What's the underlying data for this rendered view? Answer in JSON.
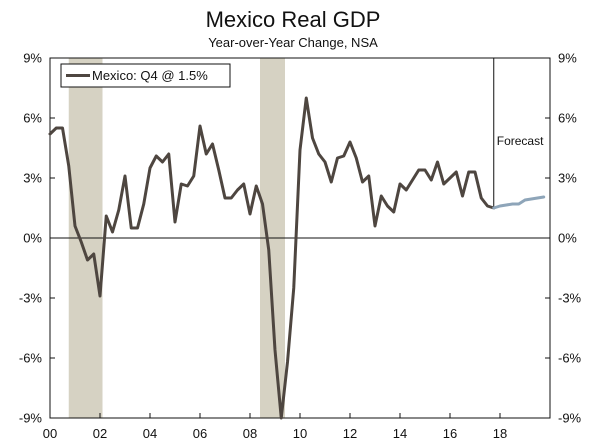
{
  "chart_data": {
    "type": "line",
    "title": "Mexico Real GDP",
    "subtitle": "Year-over-Year Change, NSA",
    "xlabel": "",
    "ylabel": "",
    "xlim": [
      2000,
      2020
    ],
    "ylim": [
      -9,
      9
    ],
    "y_ticks": [
      9,
      6,
      3,
      0,
      -3,
      -6,
      -9
    ],
    "y_tick_labels": [
      "9%",
      "6%",
      "3%",
      "0%",
      "-3%",
      "-6%",
      "-9%"
    ],
    "x_ticks": [
      2000,
      2002,
      2004,
      2006,
      2008,
      2010,
      2012,
      2014,
      2016,
      2018
    ],
    "x_tick_labels": [
      "00",
      "02",
      "04",
      "06",
      "08",
      "10",
      "12",
      "14",
      "16",
      "18"
    ],
    "legend": {
      "label": "Mexico: Q4 @ 1.5%",
      "position": "top-left"
    },
    "annotations": [
      {
        "text": "Forecast",
        "x": 2017.75
      }
    ],
    "recessions": [
      [
        2000.75,
        2002.1
      ],
      [
        2008.4,
        2009.4
      ]
    ],
    "colors": {
      "actual": "#4e4640",
      "forecast": "#8ea5b9",
      "recession": "#d6d2c3",
      "axis": "#111111"
    },
    "series": [
      {
        "name": "Mexico: Q4 @ 1.5%",
        "x": [
          2000.0,
          2000.25,
          2000.5,
          2000.75,
          2001.0,
          2001.25,
          2001.5,
          2001.75,
          2002.0,
          2002.25,
          2002.5,
          2002.75,
          2003.0,
          2003.25,
          2003.5,
          2003.75,
          2004.0,
          2004.25,
          2004.5,
          2004.75,
          2005.0,
          2005.25,
          2005.5,
          2005.75,
          2006.0,
          2006.25,
          2006.5,
          2006.75,
          2007.0,
          2007.25,
          2007.5,
          2007.75,
          2008.0,
          2008.25,
          2008.5,
          2008.75,
          2009.0,
          2009.25,
          2009.5,
          2009.75,
          2010.0,
          2010.25,
          2010.5,
          2010.75,
          2011.0,
          2011.25,
          2011.5,
          2011.75,
          2012.0,
          2012.25,
          2012.5,
          2012.75,
          2013.0,
          2013.25,
          2013.5,
          2013.75,
          2014.0,
          2014.25,
          2014.5,
          2014.75,
          2015.0,
          2015.25,
          2015.5,
          2015.75,
          2016.0,
          2016.25,
          2016.5,
          2016.75,
          2017.0,
          2017.25,
          2017.5,
          2017.75
        ],
        "values": [
          5.2,
          5.5,
          5.5,
          3.6,
          0.6,
          -0.2,
          -1.1,
          -0.8,
          -2.9,
          1.1,
          0.3,
          1.4,
          3.1,
          0.5,
          0.5,
          1.7,
          3.5,
          4.1,
          3.8,
          4.2,
          0.8,
          2.7,
          2.6,
          3.1,
          5.6,
          4.2,
          4.7,
          3.4,
          2.0,
          2.0,
          2.4,
          2.7,
          1.2,
          2.6,
          1.7,
          -0.6,
          -5.6,
          -9.0,
          -6.2,
          -2.5,
          4.4,
          7.0,
          5.0,
          4.2,
          3.8,
          2.8,
          4.0,
          4.1,
          4.8,
          4.0,
          2.8,
          3.1,
          0.6,
          2.1,
          1.6,
          1.3,
          2.7,
          2.4,
          2.9,
          3.4,
          3.4,
          2.9,
          3.8,
          2.7,
          3.0,
          3.3,
          2.1,
          3.3,
          3.3,
          2.0,
          1.6,
          1.5
        ]
      },
      {
        "name": "Forecast",
        "x": [
          2017.75,
          2018.0,
          2018.25,
          2018.5,
          2018.75,
          2019.0,
          2019.25,
          2019.5,
          2019.75
        ],
        "values": [
          1.5,
          1.6,
          1.65,
          1.7,
          1.7,
          1.9,
          1.95,
          2.0,
          2.05
        ]
      }
    ]
  }
}
